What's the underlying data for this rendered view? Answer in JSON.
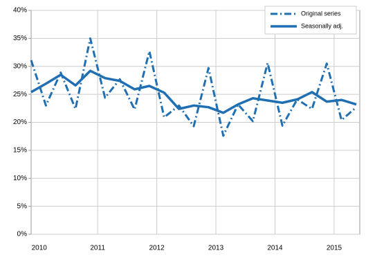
{
  "chart_data": {
    "type": "line",
    "categories": [
      "2010",
      null,
      null,
      null,
      "2011",
      null,
      null,
      null,
      "2012",
      null,
      null,
      null,
      "2013",
      null,
      null,
      null,
      "2014",
      null,
      null,
      null,
      "2015",
      null,
      null
    ],
    "series": [
      {
        "name": "Original series",
        "color": "#1f6fb2",
        "style": "dashdot",
        "values": [
          31.1,
          23.0,
          28.9,
          22.4,
          35.0,
          24.4,
          27.7,
          22.3,
          32.7,
          20.9,
          23.0,
          19.3,
          29.7,
          17.6,
          23.2,
          20.2,
          30.6,
          19.4,
          24.1,
          22.4,
          30.5,
          20.4,
          22.7
        ]
      },
      {
        "name": "Seasonally adj.",
        "color": "#1f6fb2",
        "style": "solid",
        "values": [
          25.4,
          26.9,
          28.5,
          26.6,
          29.2,
          27.9,
          27.4,
          25.9,
          26.5,
          25.3,
          22.4,
          23.0,
          22.7,
          21.7,
          23.2,
          24.3,
          23.9,
          23.5,
          24.1,
          25.4,
          23.7,
          24.0,
          23.2
        ]
      }
    ],
    "ylim": [
      0,
      40
    ],
    "yticks": [
      {
        "value": 0,
        "label": "0%"
      },
      {
        "value": 5,
        "label": "5%"
      },
      {
        "value": 10,
        "label": "10%"
      },
      {
        "value": 15,
        "label": "15%"
      },
      {
        "value": 20,
        "label": "20%"
      },
      {
        "value": 25,
        "label": "25%"
      },
      {
        "value": 30,
        "label": "30%"
      },
      {
        "value": 35,
        "label": "35%"
      },
      {
        "value": 40,
        "label": "40%"
      }
    ],
    "grid": true,
    "legend": "upper right"
  }
}
